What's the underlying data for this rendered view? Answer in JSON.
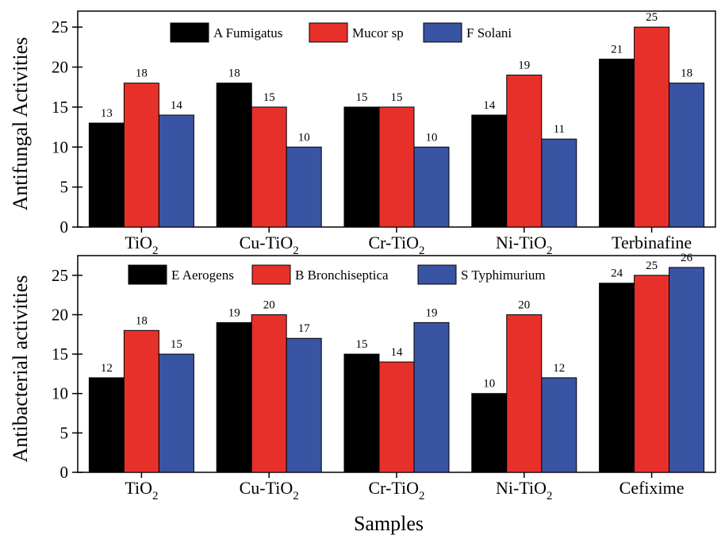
{
  "colors": {
    "black": "#000000",
    "red": "#e8302b",
    "blue": "#3a54a4"
  },
  "chart_data": [
    {
      "type": "bar",
      "ylabel": "Antifungal Activities",
      "xlabel": "",
      "ylim": [
        0,
        27
      ],
      "yticks": [
        0,
        5,
        10,
        15,
        20,
        25
      ],
      "categories": [
        {
          "base": "TiO",
          "sub": "2"
        },
        {
          "base": "Cu-TiO",
          "sub": "2"
        },
        {
          "base": "Cr-TiO",
          "sub": "2"
        },
        {
          "base": "Ni-TiO",
          "sub": "2"
        },
        {
          "base": "Terbinafine",
          "sub": ""
        }
      ],
      "series": [
        {
          "name": "A Fumigatus",
          "color": "#000000",
          "values": [
            13,
            18,
            15,
            14,
            21
          ]
        },
        {
          "name": "Mucor sp",
          "color": "#e8302b",
          "values": [
            18,
            15,
            15,
            19,
            25
          ]
        },
        {
          "name": "F Solani",
          "color": "#3a54a4",
          "values": [
            14,
            10,
            10,
            11,
            18
          ]
        }
      ],
      "legend": "top-center"
    },
    {
      "type": "bar",
      "ylabel": "Antibacterial activities",
      "xlabel": "Samples",
      "ylim": [
        0,
        27.5
      ],
      "yticks": [
        0,
        5,
        10,
        15,
        20,
        25
      ],
      "categories": [
        {
          "base": "TiO",
          "sub": "2"
        },
        {
          "base": "Cu-TiO",
          "sub": "2"
        },
        {
          "base": "Cr-TiO",
          "sub": "2"
        },
        {
          "base": "Ni-TiO",
          "sub": "2"
        },
        {
          "base": "Cefixime",
          "sub": ""
        }
      ],
      "series": [
        {
          "name": "E Aerogens",
          "color": "#000000",
          "values": [
            12,
            19,
            15,
            10,
            24
          ]
        },
        {
          "name": "B Bronchiseptica",
          "color": "#e8302b",
          "values": [
            18,
            20,
            14,
            20,
            25
          ]
        },
        {
          "name": "S Typhimurium",
          "color": "#3a54a4",
          "values": [
            15,
            17,
            19,
            12,
            26
          ]
        }
      ],
      "legend": "top-center"
    }
  ]
}
